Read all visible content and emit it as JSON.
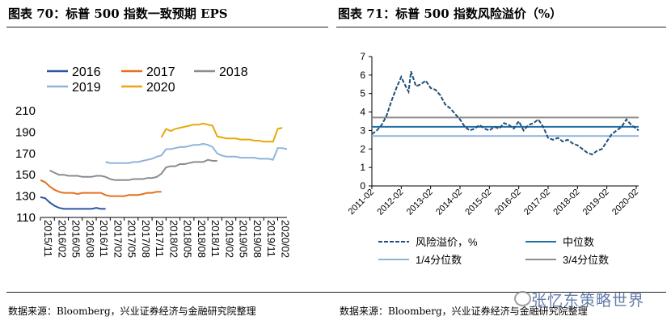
{
  "header": {
    "left_title": "图表 70：标普 500 指数一致预期 EPS",
    "right_title": "图表 71：标普 500 指数风险溢价（%）"
  },
  "footer": {
    "left_source": "数据来源：Bloomberg，兴业证券经济与金融研究院整理",
    "right_source": "数据来源：Bloomberg，兴业证券经济与金融研究院整理",
    "watermark": "张忆东策略世界"
  },
  "colors": {
    "s2016": "#2e55a3",
    "s2017": "#e6701f",
    "s2018": "#8c8c8c",
    "s2019": "#8fb4dc",
    "s2020": "#e8a80a",
    "risk": "#1f4e79",
    "median": "#1f6fa5",
    "q1": "#8fb4dc",
    "q3": "#8c8c8c"
  },
  "chart_data": [
    {
      "type": "line",
      "x_type": "month",
      "x_range": [
        "2015-11",
        "2020-04"
      ],
      "ylim": [
        110,
        210
      ],
      "yticks": [
        110,
        130,
        150,
        170,
        190,
        210
      ],
      "xticks": [
        "2015/11",
        "2016/02",
        "2016/05",
        "2016/08",
        "2016/11",
        "2017/02",
        "2017/05",
        "2017/08",
        "2017/11",
        "2018/02",
        "2018/05",
        "2018/08",
        "2018/11",
        "2019/02",
        "2019/05",
        "2019/08",
        "2019/11",
        "2020/02"
      ],
      "legend_position": "top",
      "series": [
        {
          "name": "2016",
          "color_key": "s2016",
          "points": [
            [
              "2015-11",
              129
            ],
            [
              "2015-12",
              128
            ],
            [
              "2016-01",
              124
            ],
            [
              "2016-02",
              121
            ],
            [
              "2016-03",
              119
            ],
            [
              "2016-04",
              118
            ],
            [
              "2016-05",
              118
            ],
            [
              "2016-06",
              118
            ],
            [
              "2016-07",
              118
            ],
            [
              "2016-08",
              118
            ],
            [
              "2016-09",
              118
            ],
            [
              "2016-10",
              118
            ],
            [
              "2016-11",
              119
            ],
            [
              "2016-12",
              118
            ],
            [
              "2017-01",
              118
            ]
          ]
        },
        {
          "name": "2017",
          "color_key": "s2017",
          "points": [
            [
              "2015-11",
              145
            ],
            [
              "2015-12",
              143
            ],
            [
              "2016-01",
              139
            ],
            [
              "2016-02",
              136
            ],
            [
              "2016-03",
              134
            ],
            [
              "2016-04",
              133
            ],
            [
              "2016-05",
              133
            ],
            [
              "2016-06",
              133
            ],
            [
              "2016-07",
              132
            ],
            [
              "2016-08",
              133
            ],
            [
              "2016-09",
              133
            ],
            [
              "2016-10",
              133
            ],
            [
              "2016-11",
              133
            ],
            [
              "2016-12",
              133
            ],
            [
              "2017-01",
              131
            ],
            [
              "2017-02",
              130
            ],
            [
              "2017-03",
              130
            ],
            [
              "2017-04",
              130
            ],
            [
              "2017-05",
              130
            ],
            [
              "2017-06",
              131
            ],
            [
              "2017-07",
              131
            ],
            [
              "2017-08",
              131
            ],
            [
              "2017-09",
              132
            ],
            [
              "2017-10",
              133
            ],
            [
              "2017-11",
              133
            ],
            [
              "2017-12",
              134
            ],
            [
              "2018-01",
              134
            ]
          ]
        },
        {
          "name": "2018",
          "color_key": "s2018",
          "points": [
            [
              "2016-01",
              154
            ],
            [
              "2016-02",
              152
            ],
            [
              "2016-03",
              150
            ],
            [
              "2016-04",
              150
            ],
            [
              "2016-05",
              149
            ],
            [
              "2016-06",
              149
            ],
            [
              "2016-07",
              149
            ],
            [
              "2016-08",
              148
            ],
            [
              "2016-09",
              148
            ],
            [
              "2016-10",
              148
            ],
            [
              "2016-11",
              149
            ],
            [
              "2016-12",
              149
            ],
            [
              "2017-01",
              148
            ],
            [
              "2017-02",
              146
            ],
            [
              "2017-03",
              145
            ],
            [
              "2017-04",
              145
            ],
            [
              "2017-05",
              145
            ],
            [
              "2017-06",
              145
            ],
            [
              "2017-07",
              146
            ],
            [
              "2017-08",
              146
            ],
            [
              "2017-09",
              146
            ],
            [
              "2017-10",
              147
            ],
            [
              "2017-11",
              147
            ],
            [
              "2017-12",
              148
            ],
            [
              "2018-01",
              151
            ],
            [
              "2018-02",
              157
            ],
            [
              "2018-03",
              158
            ],
            [
              "2018-04",
              158
            ],
            [
              "2018-05",
              160
            ],
            [
              "2018-06",
              160
            ],
            [
              "2018-07",
              161
            ],
            [
              "2018-08",
              162
            ],
            [
              "2018-09",
              162
            ],
            [
              "2018-10",
              162
            ],
            [
              "2018-11",
              164
            ],
            [
              "2018-12",
              163
            ],
            [
              "2019-01",
              163
            ]
          ]
        },
        {
          "name": "2019",
          "color_key": "s2019",
          "points": [
            [
              "2017-01",
              162
            ],
            [
              "2017-02",
              161
            ],
            [
              "2017-03",
              161
            ],
            [
              "2017-04",
              161
            ],
            [
              "2017-05",
              161
            ],
            [
              "2017-06",
              161
            ],
            [
              "2017-07",
              162
            ],
            [
              "2017-08",
              162
            ],
            [
              "2017-09",
              163
            ],
            [
              "2017-10",
              164
            ],
            [
              "2017-11",
              165
            ],
            [
              "2017-12",
              167
            ],
            [
              "2018-01",
              168
            ],
            [
              "2018-02",
              174
            ],
            [
              "2018-03",
              174
            ],
            [
              "2018-04",
              175
            ],
            [
              "2018-05",
              176
            ],
            [
              "2018-06",
              176
            ],
            [
              "2018-07",
              177
            ],
            [
              "2018-08",
              178
            ],
            [
              "2018-09",
              178
            ],
            [
              "2018-10",
              179
            ],
            [
              "2018-11",
              178
            ],
            [
              "2018-12",
              176
            ],
            [
              "2019-01",
              170
            ],
            [
              "2019-02",
              168
            ],
            [
              "2019-03",
              167
            ],
            [
              "2019-04",
              167
            ],
            [
              "2019-05",
              167
            ],
            [
              "2019-06",
              166
            ],
            [
              "2019-07",
              166
            ],
            [
              "2019-08",
              166
            ],
            [
              "2019-09",
              166
            ],
            [
              "2019-10",
              165
            ],
            [
              "2019-11",
              165
            ],
            [
              "2019-12",
              165
            ],
            [
              "2020-01",
              164
            ],
            [
              "2020-02",
              175
            ],
            [
              "2020-03",
              175
            ],
            [
              "2020-04",
              174
            ]
          ]
        },
        {
          "name": "2020",
          "color_key": "s2020",
          "points": [
            [
              "2018-01",
              185
            ],
            [
              "2018-02",
              193
            ],
            [
              "2018-03",
              191
            ],
            [
              "2018-04",
              193
            ],
            [
              "2018-05",
              194
            ],
            [
              "2018-06",
              195
            ],
            [
              "2018-07",
              196
            ],
            [
              "2018-08",
              197
            ],
            [
              "2018-09",
              197
            ],
            [
              "2018-10",
              198
            ],
            [
              "2018-11",
              197
            ],
            [
              "2018-12",
              196
            ],
            [
              "2019-01",
              186
            ],
            [
              "2019-02",
              185
            ],
            [
              "2019-03",
              184
            ],
            [
              "2019-04",
              184
            ],
            [
              "2019-05",
              184
            ],
            [
              "2019-06",
              183
            ],
            [
              "2019-07",
              183
            ],
            [
              "2019-08",
              183
            ],
            [
              "2019-09",
              182
            ],
            [
              "2019-10",
              182
            ],
            [
              "2019-11",
              181
            ],
            [
              "2019-12",
              181
            ],
            [
              "2020-01",
              181
            ],
            [
              "2020-02",
              193
            ],
            [
              "2020-03",
              194
            ]
          ]
        }
      ]
    },
    {
      "type": "line",
      "x_type": "month",
      "x_range": [
        "2011-02",
        "2020-03"
      ],
      "ylim": [
        0,
        7
      ],
      "yticks": [
        0,
        1,
        2,
        3,
        4,
        5,
        6,
        7
      ],
      "xticks": [
        "2011-02",
        "2012-02",
        "2013-02",
        "2014-02",
        "2015-02",
        "2016-02",
        "2017-02",
        "2018-02",
        "2019-02",
        "2020-02"
      ],
      "legend_position": "bottom",
      "series": [
        {
          "name": "风险溢价，%",
          "color_key": "risk",
          "dashed": true,
          "points": [
            [
              "2011-02",
              2.8
            ],
            [
              "2011-04",
              3.0
            ],
            [
              "2011-06",
              3.3
            ],
            [
              "2011-08",
              3.8
            ],
            [
              "2011-10",
              4.6
            ],
            [
              "2011-12",
              5.3
            ],
            [
              "2012-02",
              5.9
            ],
            [
              "2012-03",
              5.6
            ],
            [
              "2012-05",
              5.1
            ],
            [
              "2012-06",
              6.2
            ],
            [
              "2012-08",
              5.4
            ],
            [
              "2012-10",
              5.5
            ],
            [
              "2012-12",
              5.7
            ],
            [
              "2013-02",
              5.3
            ],
            [
              "2013-04",
              5.2
            ],
            [
              "2013-06",
              4.9
            ],
            [
              "2013-08",
              4.4
            ],
            [
              "2013-10",
              4.2
            ],
            [
              "2013-12",
              3.9
            ],
            [
              "2014-02",
              3.6
            ],
            [
              "2014-04",
              3.2
            ],
            [
              "2014-06",
              3.0
            ],
            [
              "2014-08",
              3.1
            ],
            [
              "2014-10",
              3.3
            ],
            [
              "2014-12",
              3.1
            ],
            [
              "2015-02",
              3.0
            ],
            [
              "2015-04",
              3.2
            ],
            [
              "2015-06",
              3.1
            ],
            [
              "2015-08",
              3.4
            ],
            [
              "2015-10",
              3.3
            ],
            [
              "2015-12",
              3.1
            ],
            [
              "2016-02",
              3.5
            ],
            [
              "2016-04",
              3.0
            ],
            [
              "2016-06",
              3.3
            ],
            [
              "2016-08",
              3.4
            ],
            [
              "2016-10",
              3.6
            ],
            [
              "2016-12",
              3.2
            ],
            [
              "2017-02",
              2.6
            ],
            [
              "2017-04",
              2.5
            ],
            [
              "2017-06",
              2.6
            ],
            [
              "2017-08",
              2.4
            ],
            [
              "2017-10",
              2.5
            ],
            [
              "2017-12",
              2.3
            ],
            [
              "2018-02",
              2.2
            ],
            [
              "2018-04",
              2.0
            ],
            [
              "2018-06",
              1.8
            ],
            [
              "2018-08",
              1.7
            ],
            [
              "2018-10",
              1.9
            ],
            [
              "2018-12",
              2.0
            ],
            [
              "2019-02",
              2.4
            ],
            [
              "2019-04",
              2.8
            ],
            [
              "2019-06",
              3.0
            ],
            [
              "2019-08",
              3.2
            ],
            [
              "2019-10",
              3.6
            ],
            [
              "2019-12",
              3.3
            ],
            [
              "2020-02",
              3.1
            ],
            [
              "2020-03",
              3.0
            ]
          ]
        },
        {
          "name": "中位数",
          "color_key": "median",
          "constant": 3.2
        },
        {
          "name": "1/4分位数",
          "color_key": "q1",
          "constant": 2.7
        },
        {
          "name": "3/4分位数",
          "color_key": "q3",
          "constant": 3.7
        }
      ]
    }
  ]
}
